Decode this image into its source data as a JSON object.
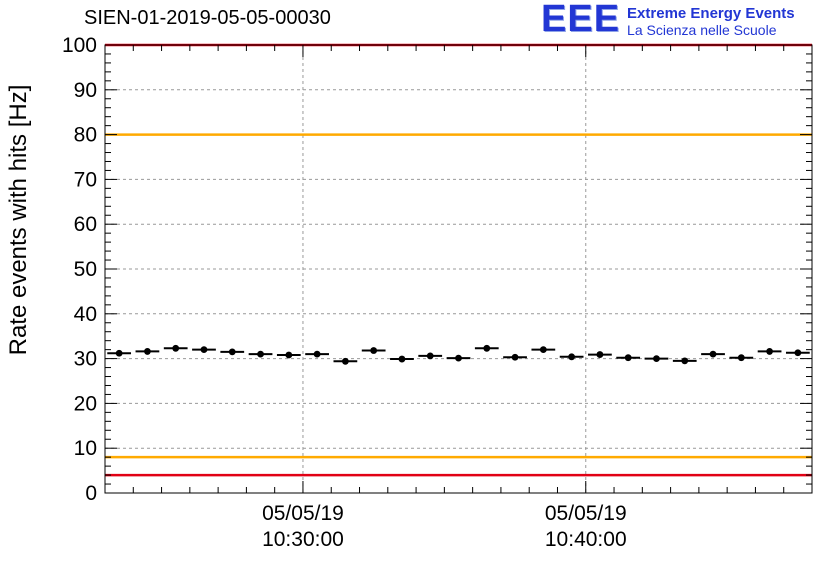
{
  "header": {
    "logo": {
      "acronym": "EEE",
      "line1": "Extreme Energy Events",
      "line2": "La Scienza nelle Scuole",
      "color": "#2236d4"
    }
  },
  "chart_data": {
    "type": "scatter",
    "title": "SIEN-01-2019-05-05-00030",
    "ylabel": "Rate events with hits [Hz]",
    "xlabel": "",
    "ylim": [
      0,
      100
    ],
    "xlim": [
      0,
      25
    ],
    "yticks": [
      0,
      10,
      20,
      30,
      40,
      50,
      60,
      70,
      80,
      90,
      100
    ],
    "y_minor_step": 2,
    "grid": "dashed",
    "grid_color": "#999999",
    "point_color": "#000000",
    "xticks": [
      {
        "t": 7,
        "label_line1": "05/05/19",
        "label_line2": "10:30:00"
      },
      {
        "t": 17,
        "label_line1": "05/05/19",
        "label_line2": "10:40:00"
      }
    ],
    "reference_lines": [
      {
        "y": 100,
        "color": "#e10014"
      },
      {
        "y": 80,
        "color": "#ffaa00"
      },
      {
        "y": 8,
        "color": "#ffaa00"
      },
      {
        "y": 4,
        "color": "#e10014"
      }
    ],
    "bin_half_width": 0.42,
    "points": [
      {
        "t": 0.5,
        "y": 31.2
      },
      {
        "t": 1.5,
        "y": 31.6
      },
      {
        "t": 2.5,
        "y": 32.3
      },
      {
        "t": 3.5,
        "y": 32.0
      },
      {
        "t": 4.5,
        "y": 31.5
      },
      {
        "t": 5.5,
        "y": 31.0
      },
      {
        "t": 6.5,
        "y": 30.8
      },
      {
        "t": 7.5,
        "y": 31.0
      },
      {
        "t": 8.5,
        "y": 29.4
      },
      {
        "t": 9.5,
        "y": 31.8
      },
      {
        "t": 10.5,
        "y": 29.9
      },
      {
        "t": 11.5,
        "y": 30.6
      },
      {
        "t": 12.5,
        "y": 30.1
      },
      {
        "t": 13.5,
        "y": 32.3
      },
      {
        "t": 14.5,
        "y": 30.3
      },
      {
        "t": 15.5,
        "y": 32.0
      },
      {
        "t": 16.5,
        "y": 30.4
      },
      {
        "t": 17.5,
        "y": 30.9
      },
      {
        "t": 18.5,
        "y": 30.2
      },
      {
        "t": 19.5,
        "y": 30.0
      },
      {
        "t": 20.5,
        "y": 29.5
      },
      {
        "t": 21.5,
        "y": 31.0
      },
      {
        "t": 22.5,
        "y": 30.2
      },
      {
        "t": 23.5,
        "y": 31.6
      },
      {
        "t": 24.5,
        "y": 31.3
      }
    ]
  }
}
